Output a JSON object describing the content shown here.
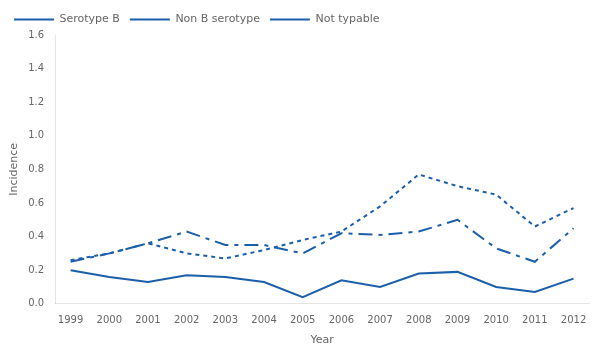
{
  "chart_data": {
    "type": "line",
    "x_label": "Year",
    "y_label": "Incidence",
    "x": [
      1999,
      2000,
      2001,
      2002,
      2003,
      2004,
      2005,
      2006,
      2007,
      2008,
      2009,
      2010,
      2011,
      2012
    ],
    "series": [
      {
        "name": "Serotype B",
        "color": "#1B5FAA",
        "line_style": "solid",
        "values": [
          0.2,
          0.16,
          0.13,
          0.17,
          0.16,
          0.13,
          0.04,
          0.14,
          0.1,
          0.18,
          0.19,
          0.1,
          0.07,
          0.15
        ]
      },
      {
        "name": "Non B serotype",
        "color": "#1B5FAA",
        "line_style": "dashdot",
        "values": [
          0.25,
          0.3,
          0.36,
          0.43,
          0.35,
          0.35,
          0.3,
          0.42,
          0.41,
          0.43,
          0.5,
          0.33,
          0.25,
          0.45
        ]
      },
      {
        "name": "Not typable",
        "color": "#1B5FAA",
        "line_style": "dotted",
        "values": [
          0.26,
          0.3,
          0.36,
          0.3,
          0.27,
          0.32,
          0.38,
          0.43,
          0.58,
          0.77,
          0.7,
          0.65,
          0.46,
          0.57
        ]
      }
    ],
    "xlim": [
      1998.6,
      2012.4
    ],
    "xticks": [
      1999,
      2000,
      2001,
      2002,
      2003,
      2004,
      2005,
      2006,
      2007,
      2008,
      2009,
      2010,
      2011,
      2012
    ],
    "ylim": [
      0.0,
      1.6
    ],
    "yticks": [
      {
        "value": 0.0,
        "label": "0.0"
      },
      0.2,
      0.4,
      0.6,
      0.8,
      {
        "value": 1.0,
        "label": "1.0"
      },
      1.2,
      1.4,
      1.6
    ],
    "grid": false,
    "legend": "upper left"
  }
}
